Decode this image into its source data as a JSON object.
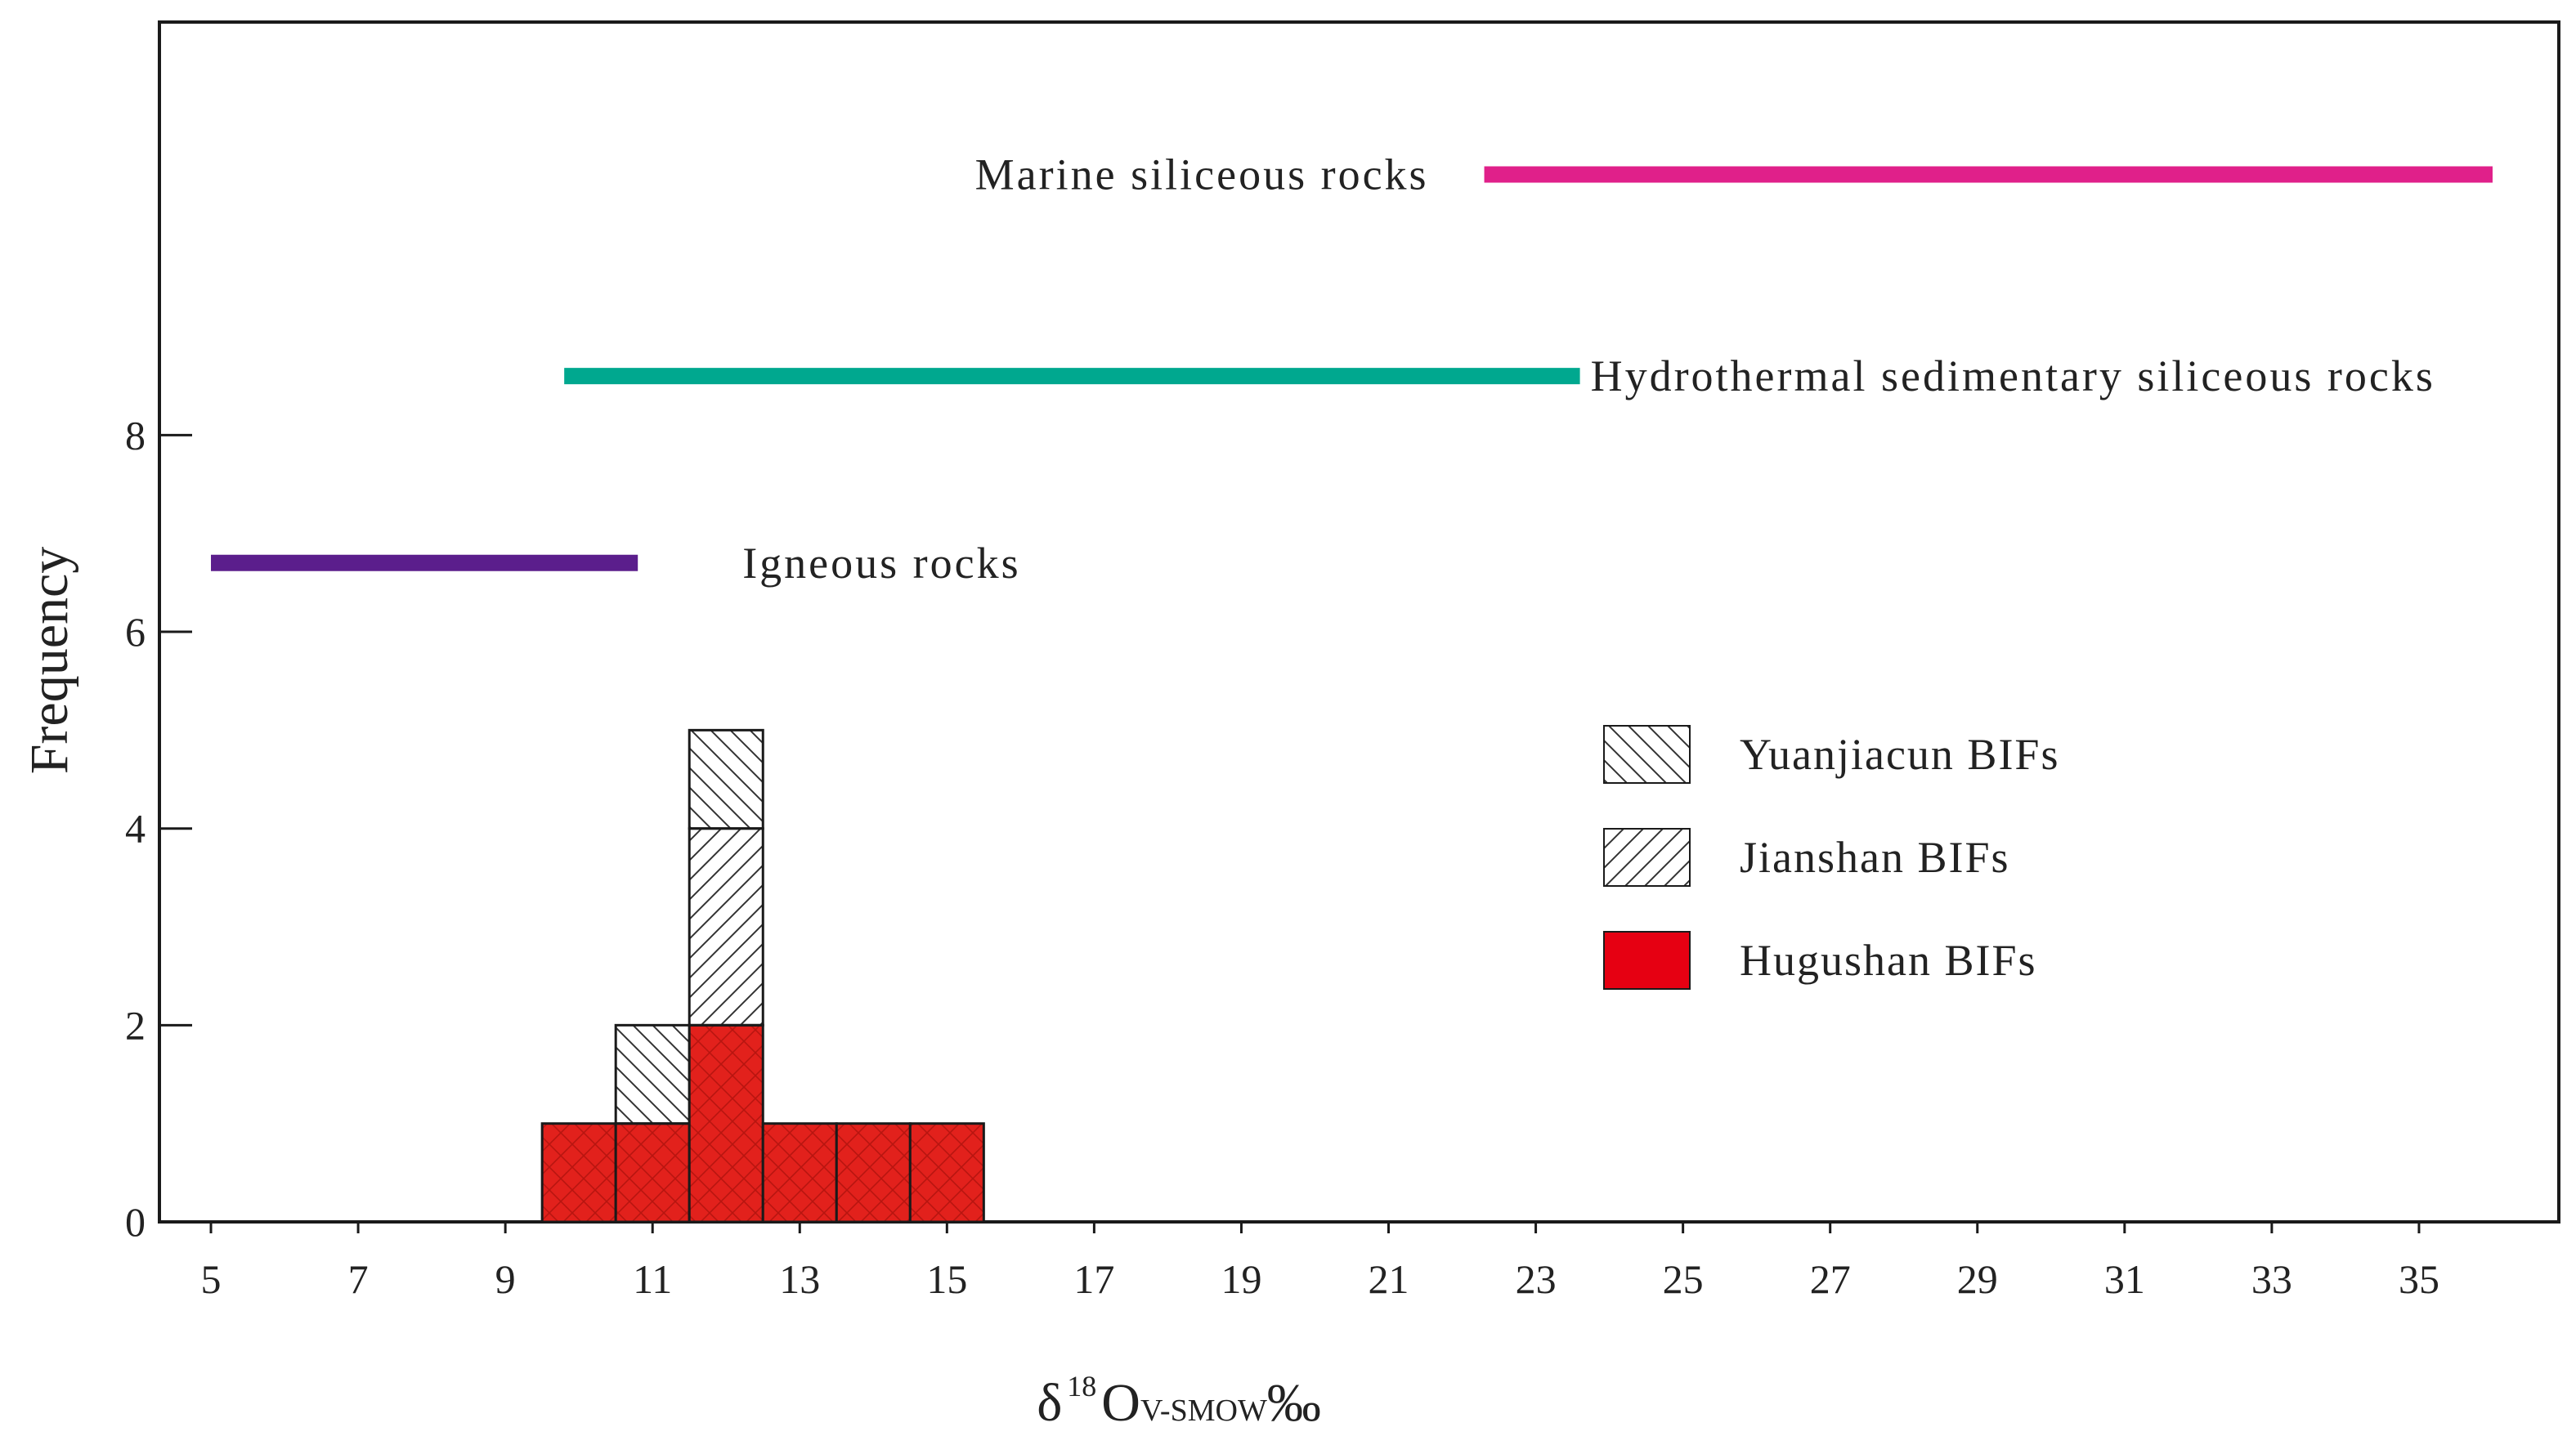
{
  "chart_data": {
    "type": "bar",
    "stacked": true,
    "xlabel": "δ18OV-SMOW‰",
    "xlabel_parts": {
      "delta": "δ",
      "sup": "18",
      "element": "O",
      "sub": "V-SMOW",
      "unit": "‰"
    },
    "ylabel": "Frequency",
    "xlim": [
      4.3,
      36.9
    ],
    "ylim": [
      0,
      12.2
    ],
    "x_ticks": [
      5,
      7,
      9,
      11,
      13,
      15,
      17,
      19,
      21,
      23,
      25,
      27,
      29,
      31,
      33,
      35
    ],
    "y_ticks": [
      0,
      2,
      4,
      6,
      8
    ],
    "bin_width": 1,
    "bins": [
      10,
      11,
      12,
      13,
      14,
      15
    ],
    "series": [
      {
        "name": "Hugushan BIFs",
        "pattern": "solid",
        "color": "#e60012",
        "values": [
          1,
          1,
          2,
          1,
          1,
          1
        ]
      },
      {
        "name": "Jianshan BIFs",
        "pattern": "forward-hatch",
        "color": "#ffffff",
        "values": [
          0,
          0,
          2,
          0,
          0,
          0
        ]
      },
      {
        "name": "Yuanjiacun BIFs",
        "pattern": "back-hatch",
        "color": "#ffffff",
        "values": [
          0,
          1,
          1,
          0,
          0,
          0
        ]
      }
    ],
    "ranges": [
      {
        "label": "Marine siliceous rocks",
        "from": 22.3,
        "to": 36.0,
        "y": 10.65,
        "color": "#e0208a",
        "label_side": "left"
      },
      {
        "label": "Hydrothermal sedimentary siliceous rocks",
        "from": 9.8,
        "to": 23.6,
        "y": 8.6,
        "color": "#00a88f",
        "label_side": "right"
      },
      {
        "label": "Igneous rocks",
        "from": 5.0,
        "to": 10.8,
        "y": 6.7,
        "color": "#5b1e8c",
        "label_side": "right"
      }
    ],
    "legend": {
      "position": "center-right",
      "entries": [
        {
          "label": "Yuanjiacun BIFs",
          "pattern": "back-hatch"
        },
        {
          "label": "Jianshan BIFs",
          "pattern": "forward-hatch"
        },
        {
          "label": "Hugushan BIFs",
          "pattern": "solid"
        }
      ]
    }
  }
}
